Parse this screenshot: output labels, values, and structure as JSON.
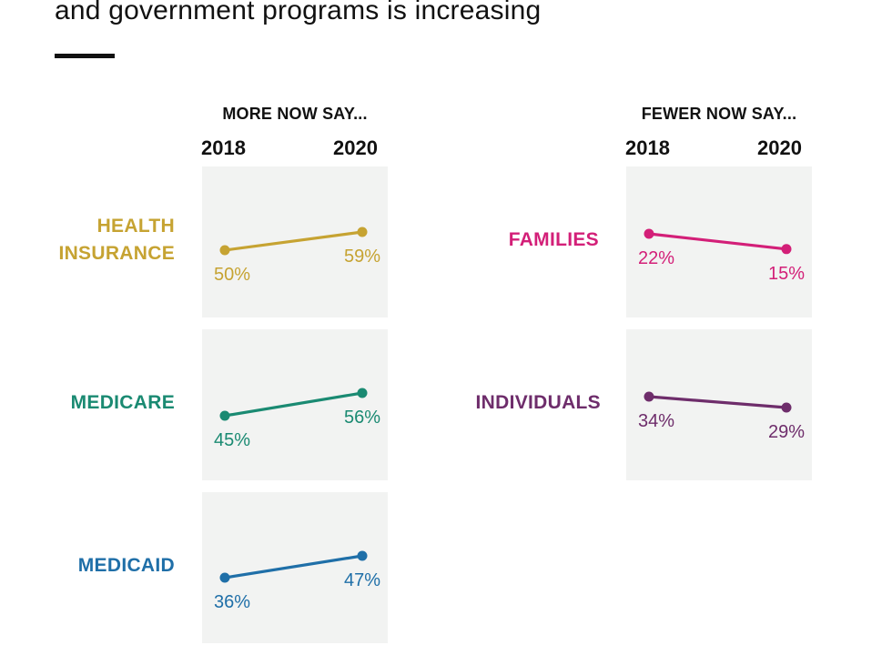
{
  "title": "and government programs is increasing",
  "colors": {
    "health_insurance": "#c6a332",
    "medicare": "#1a8a72",
    "medicaid": "#1f6fa8",
    "families": "#d31f78",
    "individuals": "#6e2d6b",
    "panel_bg": "#f2f3f2"
  },
  "groups": {
    "more": {
      "header": "MORE NOW SAY...",
      "year_start": "2018",
      "year_end": "2020"
    },
    "fewer": {
      "header": "FEWER NOW SAY...",
      "year_start": "2018",
      "year_end": "2020"
    }
  },
  "chart_data": {
    "type": "line",
    "x": [
      "2018",
      "2020"
    ],
    "value_unit": "%",
    "panels": [
      {
        "group": "MORE NOW SAY...",
        "label": "HEALTH\nINSURANCE",
        "values": [
          50,
          59
        ],
        "labels": [
          "50%",
          "59%"
        ],
        "color": "#c6a332"
      },
      {
        "group": "MORE NOW SAY...",
        "label": "MEDICARE",
        "values": [
          45,
          56
        ],
        "labels": [
          "45%",
          "56%"
        ],
        "color": "#1a8a72"
      },
      {
        "group": "MORE NOW SAY...",
        "label": "MEDICAID",
        "values": [
          36,
          47
        ],
        "labels": [
          "36%",
          "47%"
        ],
        "color": "#1f6fa8"
      },
      {
        "group": "FEWER NOW SAY...",
        "label": "FAMILIES",
        "values": [
          22,
          15
        ],
        "labels": [
          "22%",
          "15%"
        ],
        "color": "#d31f78"
      },
      {
        "group": "FEWER NOW SAY...",
        "label": "INDIVIDUALS",
        "values": [
          34,
          29
        ],
        "labels": [
          "34%",
          "29%"
        ],
        "color": "#6e2d6b"
      }
    ]
  }
}
